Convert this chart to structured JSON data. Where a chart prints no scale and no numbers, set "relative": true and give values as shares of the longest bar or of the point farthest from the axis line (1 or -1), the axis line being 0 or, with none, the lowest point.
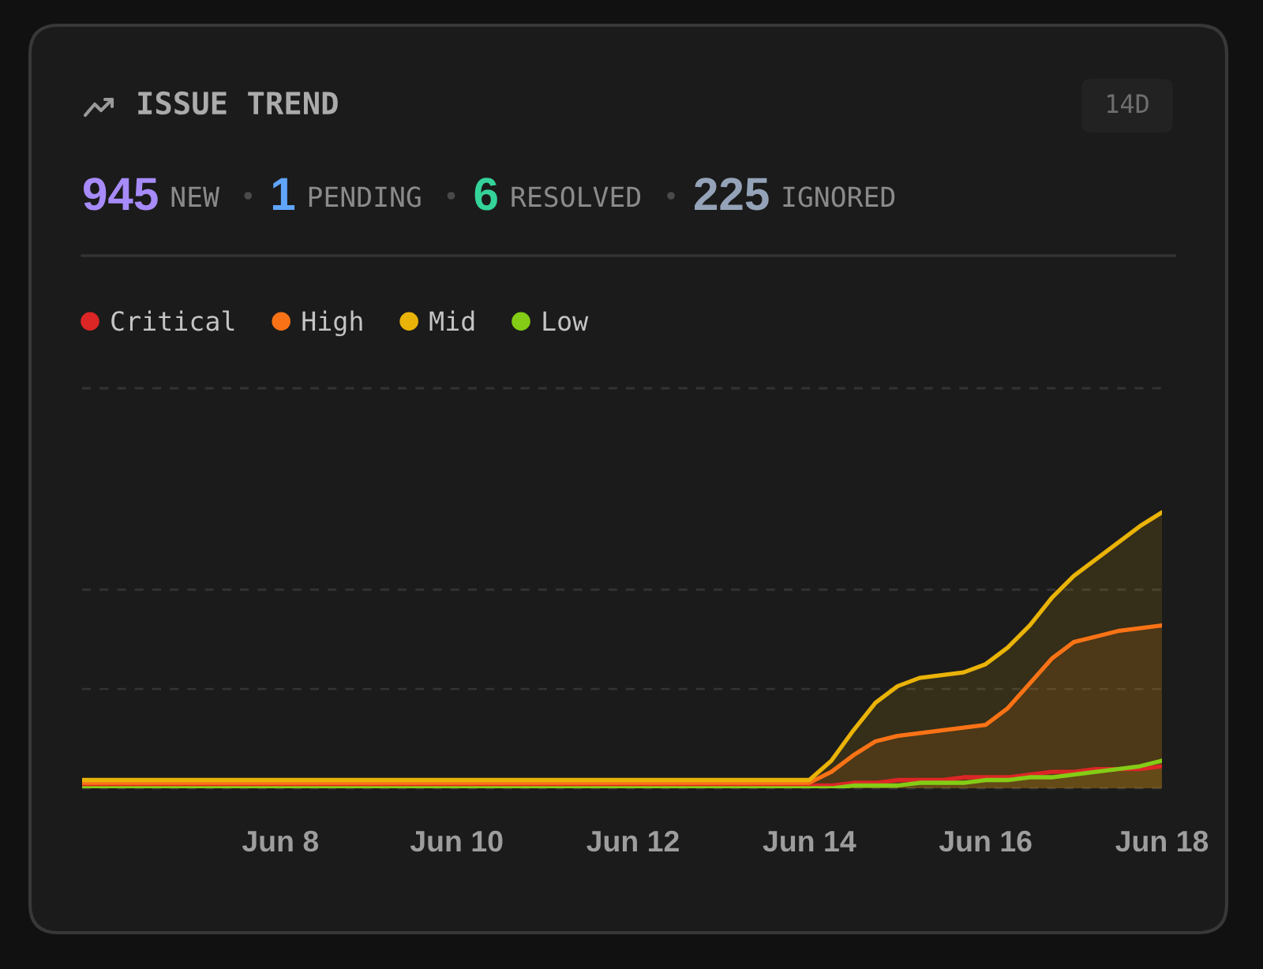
{
  "chart_data": {
    "type": "area",
    "title": "ISSUE TREND",
    "annotations": [
      "14D",
      "945",
      "NEW",
      "1",
      "PENDING",
      "6",
      "RESOLVED",
      "225",
      "IGNORED"
    ],
    "categories": [
      null,
      null,
      null,
      null,
      null,
      null,
      null,
      null,
      null,
      "Jun 8",
      null,
      null,
      null,
      null,
      null,
      null,
      null,
      "Jun 10",
      null,
      null,
      null,
      null,
      null,
      null,
      null,
      "Jun 12",
      null,
      null,
      null,
      null,
      null,
      null,
      null,
      "Jun 14",
      null,
      null,
      null,
      null,
      null,
      null,
      null,
      "Jun 16",
      null,
      null,
      null,
      null,
      null,
      null,
      null,
      "Jun 18"
    ],
    "series": [
      {
        "name": "Critical",
        "color": "#dc2626",
        "values": [
          0.01,
          0.01,
          0.01,
          0.01,
          0.01,
          0.01,
          0.01,
          0.01,
          0.01,
          0.01,
          0.01,
          0.01,
          0.01,
          0.01,
          0.01,
          0.01,
          0.01,
          0.01,
          0.01,
          0.01,
          0.01,
          0.01,
          0.01,
          0.01,
          0.01,
          0.01,
          0.01,
          0.01,
          0.01,
          0.01,
          0.01,
          0.01,
          0.01,
          0.01,
          0.01,
          0.02,
          0.02,
          0.03,
          0.03,
          0.03,
          0.04,
          0.04,
          0.04,
          0.05,
          0.06,
          0.06,
          0.07,
          0.07,
          0.07,
          0.08
        ]
      },
      {
        "name": "High",
        "color": "#f97316",
        "values": [
          0.02,
          0.02,
          0.02,
          0.02,
          0.02,
          0.02,
          0.02,
          0.02,
          0.02,
          0.02,
          0.02,
          0.02,
          0.02,
          0.02,
          0.02,
          0.02,
          0.02,
          0.02,
          0.02,
          0.02,
          0.02,
          0.02,
          0.02,
          0.02,
          0.02,
          0.02,
          0.02,
          0.02,
          0.02,
          0.02,
          0.02,
          0.02,
          0.02,
          0.02,
          0.06,
          0.12,
          0.17,
          0.19,
          0.2,
          0.21,
          0.22,
          0.23,
          0.29,
          0.38,
          0.47,
          0.53,
          0.55,
          0.57,
          0.58,
          0.59
        ]
      },
      {
        "name": "Mid",
        "color": "#eab308",
        "values": [
          0.03,
          0.03,
          0.03,
          0.03,
          0.03,
          0.03,
          0.03,
          0.03,
          0.03,
          0.03,
          0.03,
          0.03,
          0.03,
          0.03,
          0.03,
          0.03,
          0.03,
          0.03,
          0.03,
          0.03,
          0.03,
          0.03,
          0.03,
          0.03,
          0.03,
          0.03,
          0.03,
          0.03,
          0.03,
          0.03,
          0.03,
          0.03,
          0.03,
          0.03,
          0.1,
          0.21,
          0.31,
          0.37,
          0.4,
          0.41,
          0.42,
          0.45,
          0.51,
          0.59,
          0.69,
          0.77,
          0.83,
          0.89,
          0.95,
          1
        ]
      },
      {
        "name": "Low",
        "color": "#84cc16",
        "values": [
          0,
          0,
          0,
          0,
          0,
          0,
          0,
          0,
          0,
          0,
          0,
          0,
          0,
          0,
          0,
          0,
          0,
          0,
          0,
          0,
          0,
          0,
          0,
          0,
          0,
          0,
          0,
          0,
          0,
          0,
          0,
          0,
          0,
          0,
          0,
          0.01,
          0.01,
          0.01,
          0.02,
          0.02,
          0.02,
          0.03,
          0.03,
          0.04,
          0.04,
          0.05,
          0.06,
          0.07,
          0.08,
          0.1
        ]
      }
    ],
    "relative": true,
    "ref_lines": [
      {
        "axis": "y",
        "value": 0,
        "color": "#333333",
        "line_style": "dashed"
      },
      {
        "axis": "y",
        "value": 0.36,
        "color": "#333333",
        "line_style": "dashed"
      },
      {
        "axis": "y",
        "value": 0.72,
        "color": "#333333",
        "line_style": "dashed"
      },
      {
        "axis": "y",
        "value": 1.45,
        "color": "#333333",
        "line_style": "dashed"
      }
    ],
    "legend": "top left",
    "tick_labels": "x",
    "line_style": "solid"
  }
}
